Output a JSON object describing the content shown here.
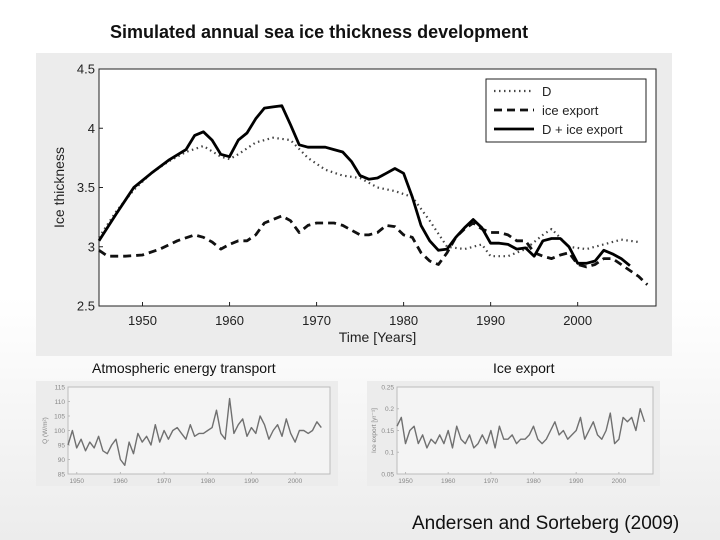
{
  "slide": {
    "title": "Simulated annual sea ice thickness development",
    "left_subtitle": "Atmospheric energy transport",
    "right_subtitle": "Ice export",
    "citation": "Andersen and Sorteberg (2009)"
  },
  "chart_data": [
    {
      "type": "line",
      "title": "",
      "xlabel": "Time [Years]",
      "ylabel": "Ice thickness",
      "xlim": [
        1945,
        2009
      ],
      "ylim": [
        2.5,
        4.5
      ],
      "xticks": [
        1950,
        1960,
        1970,
        1980,
        1990,
        2000
      ],
      "yticks": [
        2.5,
        3,
        3.5,
        4,
        4.5
      ],
      "legend_position": "top-right",
      "series": [
        {
          "name": "D",
          "style": "dotted",
          "color": "#444444",
          "x": [
            1945,
            1947,
            1949,
            1951,
            1953,
            1955,
            1957,
            1959,
            1960,
            1961,
            1963,
            1965,
            1967,
            1969,
            1971,
            1973,
            1975,
            1977,
            1979,
            1981,
            1983,
            1985,
            1987,
            1989,
            1990,
            1992,
            1994,
            1996,
            1997,
            1999,
            2001,
            2003,
            2005,
            2007
          ],
          "y": [
            3.08,
            3.3,
            3.48,
            3.62,
            3.72,
            3.8,
            3.85,
            3.76,
            3.74,
            3.78,
            3.88,
            3.92,
            3.9,
            3.75,
            3.65,
            3.6,
            3.58,
            3.5,
            3.47,
            3.42,
            3.22,
            3.0,
            2.98,
            3.02,
            2.92,
            2.92,
            2.98,
            3.1,
            3.15,
            3.0,
            2.98,
            3.02,
            3.06,
            3.04
          ]
        },
        {
          "name": "ice export",
          "style": "dashed",
          "color": "#111111",
          "x": [
            1945,
            1946,
            1948,
            1950,
            1952,
            1954,
            1956,
            1957,
            1958,
            1959,
            1960,
            1961,
            1962,
            1963,
            1964,
            1965,
            1966,
            1967,
            1968,
            1969,
            1970,
            1971,
            1972,
            1973,
            1975,
            1976,
            1977,
            1978,
            1979,
            1980,
            1981,
            1982,
            1983,
            1984,
            1985,
            1986,
            1987,
            1988,
            1989,
            1990,
            1991,
            1992,
            1993,
            1994,
            1995,
            1996,
            1997,
            1998,
            1999,
            2000,
            2001,
            2002,
            2003,
            2004,
            2005,
            2006,
            2007,
            2008
          ],
          "y": [
            2.97,
            2.92,
            2.92,
            2.93,
            2.98,
            3.05,
            3.1,
            3.08,
            3.04,
            2.98,
            3.02,
            3.05,
            3.05,
            3.1,
            3.2,
            3.23,
            3.26,
            3.22,
            3.12,
            3.18,
            3.2,
            3.2,
            3.2,
            3.18,
            3.1,
            3.1,
            3.12,
            3.18,
            3.17,
            3.1,
            3.08,
            2.95,
            2.88,
            2.85,
            2.95,
            3.08,
            3.15,
            3.2,
            3.15,
            3.12,
            3.12,
            3.1,
            3.05,
            3.05,
            2.95,
            2.92,
            2.9,
            2.93,
            2.95,
            2.85,
            2.83,
            2.85,
            2.9,
            2.9,
            2.85,
            2.8,
            2.75,
            2.68
          ]
        },
        {
          "name": "D + ice export",
          "style": "solid",
          "color": "#000000",
          "x": [
            1945,
            1947,
            1949,
            1951,
            1953,
            1955,
            1956,
            1957,
            1958,
            1959,
            1960,
            1961,
            1962,
            1963,
            1964,
            1965,
            1966,
            1967,
            1968,
            1969,
            1970,
            1971,
            1972,
            1973,
            1974,
            1975,
            1976,
            1977,
            1978,
            1979,
            1980,
            1981,
            1982,
            1983,
            1984,
            1985,
            1986,
            1987,
            1988,
            1989,
            1990,
            1991,
            1992,
            1993,
            1994,
            1995,
            1996,
            1997,
            1998,
            1999,
            2000,
            2001,
            2002,
            2003,
            2004,
            2005,
            2006
          ],
          "y": [
            3.05,
            3.28,
            3.5,
            3.62,
            3.73,
            3.82,
            3.94,
            3.97,
            3.9,
            3.78,
            3.76,
            3.9,
            3.96,
            4.08,
            4.17,
            4.18,
            4.19,
            4.03,
            3.86,
            3.84,
            3.84,
            3.84,
            3.82,
            3.8,
            3.72,
            3.6,
            3.57,
            3.58,
            3.62,
            3.66,
            3.62,
            3.42,
            3.18,
            3.05,
            2.97,
            2.98,
            3.08,
            3.16,
            3.23,
            3.16,
            3.03,
            3.03,
            3.02,
            2.98,
            2.99,
            2.92,
            3.05,
            3.07,
            3.07,
            3.0,
            2.86,
            2.86,
            2.88,
            2.97,
            2.94,
            2.9,
            2.84
          ]
        }
      ]
    },
    {
      "type": "line",
      "title": "",
      "xlabel": "",
      "ylabel": "Q (W/m²)",
      "xlim": [
        1948,
        2008
      ],
      "ylim": [
        85,
        115
      ],
      "xticks": [
        1950,
        1960,
        1970,
        1980,
        1990,
        2000
      ],
      "yticks": [
        85,
        90,
        95,
        100,
        105,
        110,
        115
      ],
      "series": [
        {
          "name": "Atmospheric energy transport",
          "color": "#707070",
          "x": [
            1948,
            1949,
            1950,
            1951,
            1952,
            1953,
            1954,
            1955,
            1956,
            1957,
            1958,
            1959,
            1960,
            1961,
            1962,
            1963,
            1964,
            1965,
            1966,
            1967,
            1968,
            1969,
            1970,
            1971,
            1972,
            1973,
            1974,
            1975,
            1976,
            1977,
            1978,
            1979,
            1980,
            1981,
            1982,
            1983,
            1984,
            1985,
            1986,
            1987,
            1988,
            1989,
            1990,
            1991,
            1992,
            1993,
            1994,
            1995,
            1996,
            1997,
            1998,
            1999,
            2000,
            2001,
            2002,
            2003,
            2004,
            2005,
            2006
          ],
          "y": [
            95,
            100,
            94,
            97,
            93,
            96,
            94,
            98,
            93,
            92,
            95,
            97,
            90,
            88,
            96,
            92,
            99,
            96,
            98,
            95,
            102,
            96,
            100,
            97,
            100,
            101,
            99,
            97,
            102,
            98,
            99,
            99,
            100,
            101,
            107,
            99,
            97,
            111,
            99,
            102,
            104,
            98,
            101,
            99,
            105,
            102,
            97,
            100,
            102,
            98,
            104,
            99,
            96,
            100,
            100,
            99,
            100,
            103,
            101
          ]
        }
      ]
    },
    {
      "type": "line",
      "title": "",
      "xlabel": "",
      "ylabel": "Ice export [yr⁻¹]",
      "xlim": [
        1948,
        2008
      ],
      "ylim": [
        0.05,
        0.25
      ],
      "xticks": [
        1950,
        1960,
        1970,
        1980,
        1990,
        2000
      ],
      "yticks": [
        0.05,
        0.1,
        0.15,
        0.2,
        0.25
      ],
      "series": [
        {
          "name": "Ice export",
          "color": "#707070",
          "x": [
            1948,
            1949,
            1950,
            1951,
            1952,
            1953,
            1954,
            1955,
            1956,
            1957,
            1958,
            1959,
            1960,
            1961,
            1962,
            1963,
            1964,
            1965,
            1966,
            1967,
            1968,
            1969,
            1970,
            1971,
            1972,
            1973,
            1974,
            1975,
            1976,
            1977,
            1978,
            1979,
            1980,
            1981,
            1982,
            1983,
            1984,
            1985,
            1986,
            1987,
            1988,
            1989,
            1990,
            1991,
            1992,
            1993,
            1994,
            1995,
            1996,
            1997,
            1998,
            1999,
            2000,
            2001,
            2002,
            2003,
            2004,
            2005,
            2006
          ],
          "y": [
            0.16,
            0.18,
            0.12,
            0.15,
            0.16,
            0.12,
            0.14,
            0.11,
            0.13,
            0.12,
            0.14,
            0.12,
            0.15,
            0.11,
            0.16,
            0.13,
            0.12,
            0.14,
            0.11,
            0.12,
            0.14,
            0.12,
            0.15,
            0.11,
            0.16,
            0.13,
            0.13,
            0.14,
            0.12,
            0.13,
            0.13,
            0.14,
            0.16,
            0.13,
            0.12,
            0.13,
            0.15,
            0.17,
            0.14,
            0.15,
            0.13,
            0.14,
            0.15,
            0.18,
            0.13,
            0.15,
            0.17,
            0.14,
            0.13,
            0.15,
            0.19,
            0.12,
            0.13,
            0.18,
            0.17,
            0.18,
            0.15,
            0.2,
            0.17
          ]
        }
      ]
    }
  ]
}
